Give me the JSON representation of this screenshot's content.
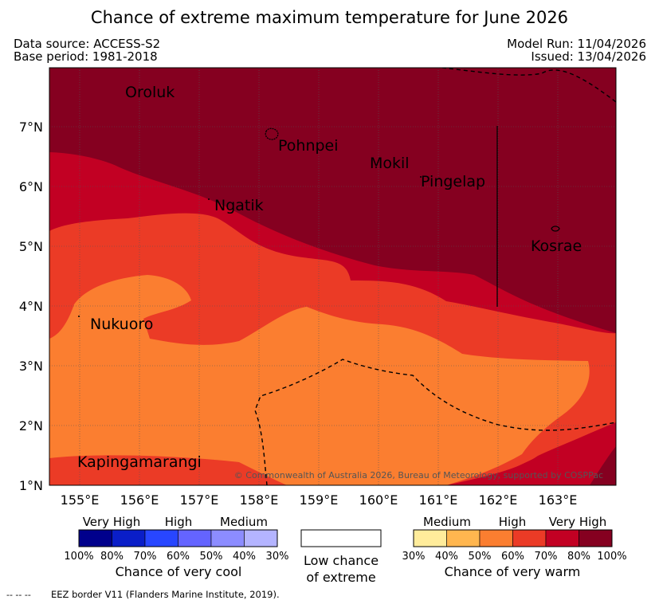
{
  "header": {
    "title": "Chance of extreme maximum temperature for June 2026",
    "data_source": "Data source: ACCESS-S2",
    "base_period": "Base period: 1981-2018",
    "model_run": "Model Run: 11/04/2026",
    "issued": "Issued: 13/04/2026"
  },
  "map": {
    "lat_labels": [
      "7°N",
      "6°N",
      "5°N",
      "4°N",
      "3°N",
      "2°N",
      "1°N"
    ],
    "lon_labels": [
      "155°E",
      "156°E",
      "157°E",
      "158°E",
      "159°E",
      "160°E",
      "161°E",
      "162°E",
      "163°E"
    ],
    "places": [
      "Oroluk",
      "Pohnpei",
      "Mokil",
      "Pingelap",
      "Ngatik",
      "Kosrae",
      "Nukuoro",
      "Kapingamarangi"
    ],
    "copyright": "© Commonwealth of Australia 2026, Bureau of Meteorology, supported by COSPPac"
  },
  "legend": {
    "cool": {
      "categories": [
        "Very High",
        "High",
        "Medium"
      ],
      "ticks": [
        "100%",
        "80%",
        "70%",
        "60%",
        "50%",
        "40%",
        "30%"
      ],
      "caption": "Chance of very cool",
      "colors": [
        "#00008c",
        "#0a1ec8",
        "#2846ff",
        "#6464ff",
        "#8c8cff",
        "#b4b4ff"
      ]
    },
    "low": {
      "caption_line1": "Low chance",
      "caption_line2": "of extreme"
    },
    "warm": {
      "categories": [
        "Medium",
        "High",
        "Very High"
      ],
      "ticks": [
        "30%",
        "40%",
        "50%",
        "60%",
        "70%",
        "80%",
        "100%"
      ],
      "caption": "Chance of very warm",
      "colors": [
        "#ffec9b",
        "#ffb64f",
        "#fb7e30",
        "#eb3b26",
        "#c20023",
        "#850020"
      ]
    }
  },
  "footer": {
    "eez_symbol": "-- -- --",
    "eez_note": "EEZ border V11 (Flanders Marine Institute, 2019)."
  }
}
